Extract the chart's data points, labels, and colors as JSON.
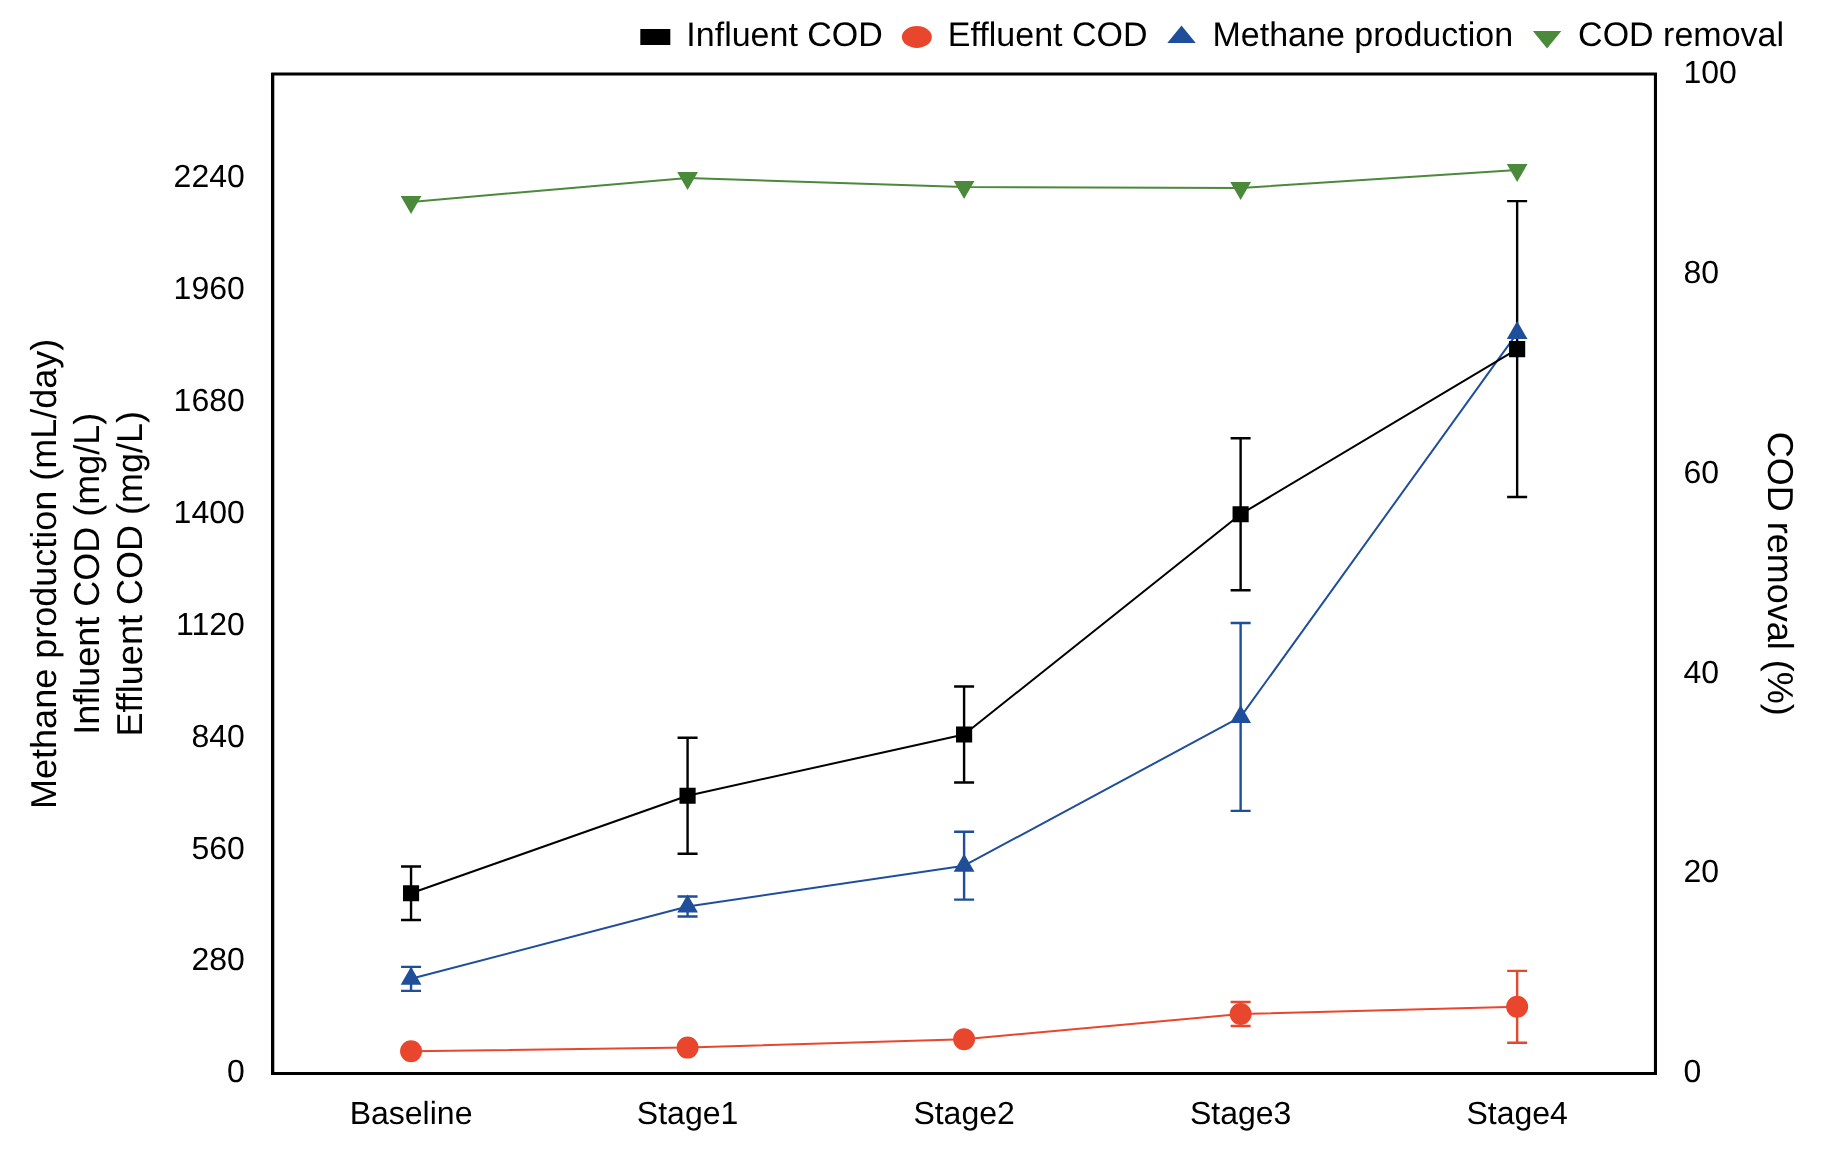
{
  "chart_data": {
    "type": "line",
    "categories": [
      "Baseline",
      "Stage1",
      "Stage2",
      "Stage3",
      "Stage4"
    ],
    "ylabel": [
      "Methane production (mL/day)",
      "Influent COD (mg/L)",
      "Effluent COD (mg/L)"
    ],
    "y2label": "COD removal (%)",
    "ylim": [
      0,
      2500
    ],
    "yticks": [
      0,
      280,
      560,
      840,
      1120,
      1400,
      1680,
      1960,
      2240
    ],
    "y2lim": [
      0,
      100
    ],
    "y2ticks": [
      0,
      20,
      40,
      60,
      80,
      100
    ],
    "grid": false,
    "legend": "top right",
    "line_style": "solid",
    "series": [
      {
        "name": "Influent COD",
        "color": "#000000",
        "marker": "square",
        "values": [
          451,
          695,
          848,
          1399,
          1812
        ],
        "errors": [
          67,
          145,
          120,
          190,
          370
        ]
      },
      {
        "name": "Effluent COD",
        "color": "#e8472e",
        "marker": "circle",
        "values": [
          56,
          65,
          86,
          149,
          167
        ],
        "errors": [
          null,
          null,
          null,
          30,
          90
        ]
      },
      {
        "name": "Methane production",
        "color": "#1f4e9a",
        "marker": "triangle",
        "values": [
          237,
          418,
          520,
          892,
          1852
        ],
        "errors": [
          30,
          25,
          85,
          235,
          null
        ]
      },
      {
        "name": "COD removal",
        "color": "#4a8a3a",
        "marker": "triangle-down",
        "axis": "y2",
        "values": [
          87.2,
          89.6,
          88.7,
          88.6,
          90.4
        ]
      }
    ]
  }
}
